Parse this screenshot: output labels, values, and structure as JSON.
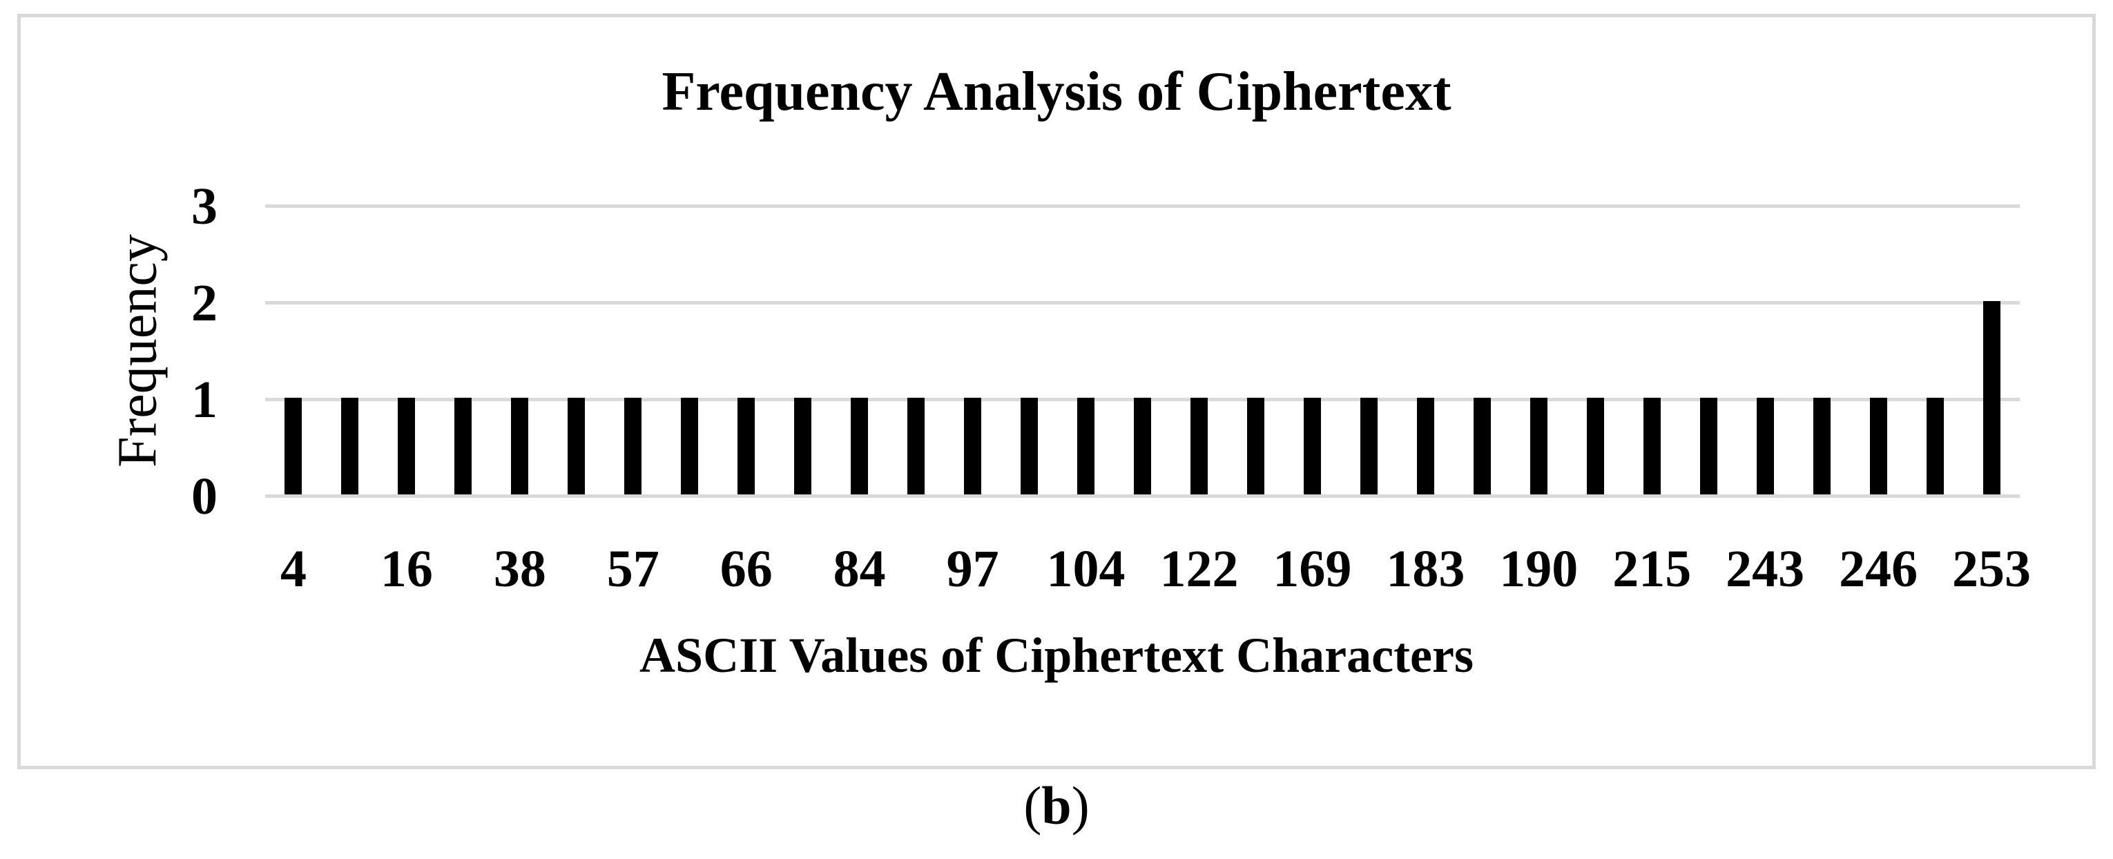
{
  "figure": {
    "caption": {
      "open": "(",
      "letter": "b",
      "close": ")"
    }
  },
  "chart_data": {
    "type": "bar",
    "title": "Frequency Analysis of Ciphertext",
    "xlabel": "ASCII Values of Ciphertext Characters",
    "ylabel": "Frequency",
    "ylim": [
      0,
      3
    ],
    "y_ticks": [
      3,
      2,
      1,
      0
    ],
    "grid": true,
    "legend": false,
    "bar_color": "#000000",
    "gridline_color": "#d9d9d9",
    "frame_color": "#d9d9d9",
    "plot_bg": "#ffffff",
    "categories": [
      "4",
      "",
      "16",
      "",
      "38",
      "",
      "57",
      "",
      "66",
      "",
      "84",
      "",
      "97",
      "",
      "104",
      "",
      "122",
      "",
      "169",
      "",
      "183",
      "",
      "190",
      "",
      "215",
      "",
      "243",
      "",
      "246",
      "",
      "253"
    ],
    "values": [
      1,
      1,
      1,
      1,
      1,
      1,
      1,
      1,
      1,
      1,
      1,
      1,
      1,
      1,
      1,
      1,
      1,
      1,
      1,
      1,
      1,
      1,
      1,
      1,
      1,
      1,
      1,
      1,
      1,
      1,
      2
    ]
  }
}
